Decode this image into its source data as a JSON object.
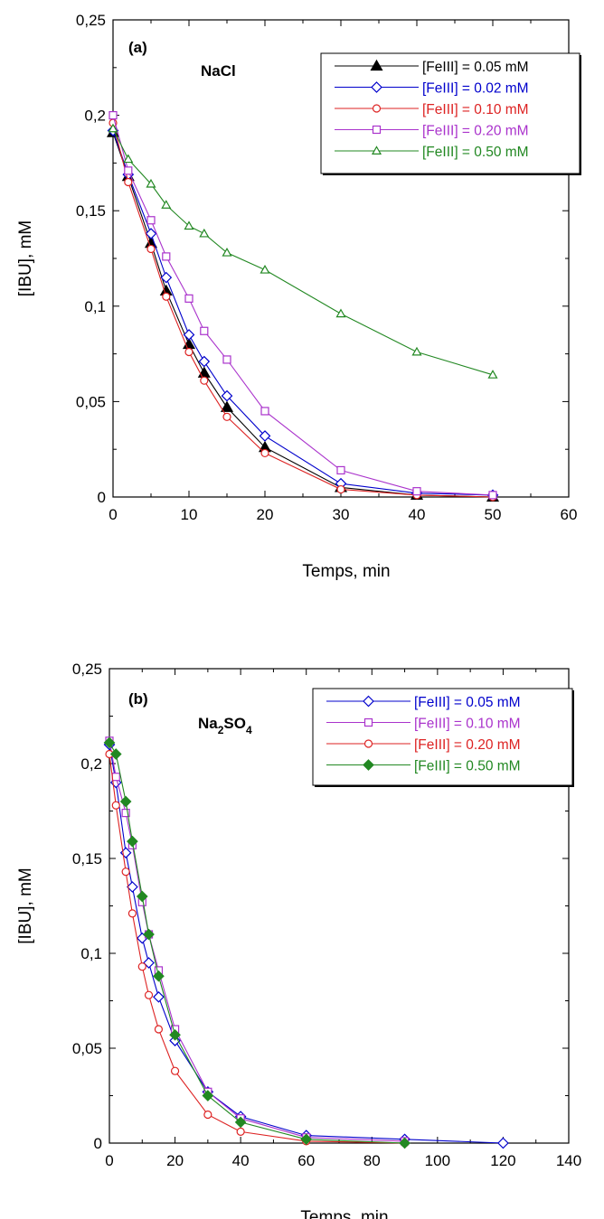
{
  "chart_data": [
    {
      "type": "line",
      "panel_label": "(a)",
      "annotation": "NaCl",
      "xlabel": "Temps, min",
      "ylabel": "[IBU], mM",
      "xlim": [
        0,
        60
      ],
      "ylim": [
        0,
        0.25
      ],
      "xticks": [
        "0",
        "10",
        "20",
        "30",
        "40",
        "50",
        "60"
      ],
      "yticks": [
        "0",
        "0,05",
        "0,1",
        "0,15",
        "0,2",
        "0,25"
      ],
      "grid": false,
      "legend_position": "top-right",
      "series": [
        {
          "name": "[FeIII] = 0.05 mM",
          "color": "#000000",
          "marker": "triangle",
          "filled": true,
          "x": [
            0,
            2,
            5,
            7,
            10,
            12,
            15,
            20,
            30,
            40,
            50
          ],
          "y": [
            0.191,
            0.168,
            0.133,
            0.108,
            0.08,
            0.065,
            0.047,
            0.026,
            0.005,
            0.001,
            0.0
          ]
        },
        {
          "name": "[FeIII] = 0.02 mM",
          "color": "#0000cc",
          "marker": "diamond",
          "filled": false,
          "x": [
            0,
            2,
            5,
            7,
            10,
            12,
            15,
            20,
            30,
            40,
            50
          ],
          "y": [
            0.192,
            0.169,
            0.138,
            0.115,
            0.085,
            0.071,
            0.053,
            0.032,
            0.007,
            0.002,
            0.001
          ]
        },
        {
          "name": "[FeIII] = 0.10 mM",
          "color": "#dd2222",
          "marker": "circle",
          "filled": false,
          "x": [
            0,
            2,
            5,
            7,
            10,
            12,
            15,
            20,
            30,
            40,
            50
          ],
          "y": [
            0.196,
            0.165,
            0.13,
            0.105,
            0.076,
            0.061,
            0.042,
            0.023,
            0.004,
            0.001,
            0.0
          ]
        },
        {
          "name": "[FeIII] = 0.20 mM",
          "color": "#aa33cc",
          "marker": "square",
          "filled": false,
          "x": [
            0,
            2,
            5,
            7,
            10,
            12,
            15,
            20,
            30,
            40,
            50
          ],
          "y": [
            0.2,
            0.171,
            0.145,
            0.126,
            0.104,
            0.087,
            0.072,
            0.045,
            0.014,
            0.003,
            0.001
          ]
        },
        {
          "name": "[FeIII] = 0.50 mM",
          "color": "#228822",
          "marker": "triangle",
          "filled": false,
          "x": [
            0,
            2,
            5,
            7,
            10,
            12,
            15,
            20,
            30,
            40,
            50
          ],
          "y": [
            0.193,
            0.177,
            0.164,
            0.153,
            0.142,
            0.138,
            0.128,
            0.119,
            0.096,
            0.076,
            0.064
          ]
        }
      ]
    },
    {
      "type": "line",
      "panel_label": "(b)",
      "annotation_main": "Na",
      "annotation_sub1": "2",
      "annotation_mid": "SO",
      "annotation_sub2": "4",
      "xlabel": "Temps, min",
      "ylabel": "[IBU], mM",
      "xlim": [
        0,
        140
      ],
      "ylim": [
        0,
        0.25
      ],
      "xticks": [
        "0",
        "20",
        "40",
        "60",
        "80",
        "100",
        "120",
        "140"
      ],
      "yticks": [
        "0",
        "0,05",
        "0,1",
        "0,15",
        "0,2",
        "0,25"
      ],
      "grid": false,
      "legend_position": "top-right",
      "series": [
        {
          "name": "[FeIII] = 0.05 mM",
          "color": "#0000cc",
          "marker": "diamond",
          "filled": false,
          "x": [
            0,
            2,
            5,
            7,
            10,
            12,
            15,
            20,
            30,
            40,
            60,
            90,
            120
          ],
          "y": [
            0.21,
            0.19,
            0.153,
            0.135,
            0.108,
            0.095,
            0.077,
            0.054,
            0.027,
            0.014,
            0.004,
            0.002,
            0.0
          ]
        },
        {
          "name": "[FeIII] = 0.10 mM",
          "color": "#aa33cc",
          "marker": "square",
          "filled": false,
          "x": [
            0,
            2,
            5,
            7,
            10,
            12,
            15,
            20,
            30,
            40,
            60,
            90
          ],
          "y": [
            0.212,
            0.193,
            0.174,
            0.157,
            0.127,
            0.11,
            0.091,
            0.06,
            0.027,
            0.013,
            0.003,
            0.001
          ]
        },
        {
          "name": "[FeIII] = 0.20 mM",
          "color": "#dd2222",
          "marker": "circle",
          "filled": false,
          "x": [
            0,
            2,
            5,
            7,
            10,
            12,
            15,
            20,
            30,
            40,
            60,
            90
          ],
          "y": [
            0.205,
            0.178,
            0.143,
            0.121,
            0.093,
            0.078,
            0.06,
            0.038,
            0.015,
            0.006,
            0.001,
            0.0
          ]
        },
        {
          "name": "[FeIII] = 0.50 mM",
          "color": "#228822",
          "marker": "diamond",
          "filled": true,
          "x": [
            0,
            2,
            5,
            7,
            10,
            12,
            15,
            20,
            30,
            40,
            60,
            90
          ],
          "y": [
            0.211,
            0.205,
            0.18,
            0.159,
            0.13,
            0.11,
            0.088,
            0.057,
            0.025,
            0.011,
            0.002,
            0.0
          ]
        }
      ]
    }
  ]
}
